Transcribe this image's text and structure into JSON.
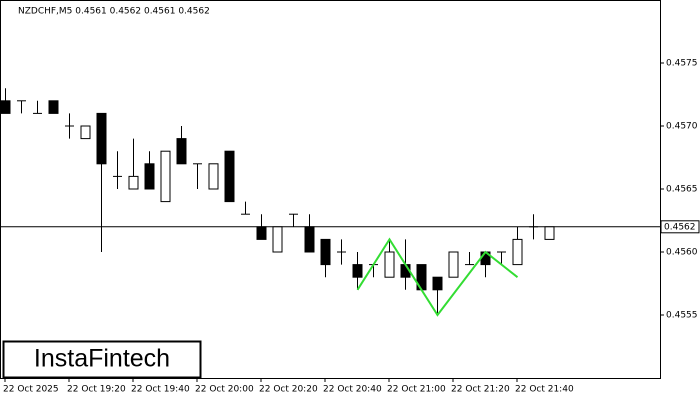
{
  "chart_data": {
    "type": "candlestick",
    "title": "NZDCHF,M5  0.4561 0.4562 0.4561 0.4562",
    "logo": "InstaFintech",
    "categories": [
      "22 Oct 2025",
      null,
      null,
      null,
      "22 Oct 19:20",
      null,
      null,
      null,
      "22 Oct 19:40",
      null,
      null,
      null,
      "22 Oct 20:00",
      null,
      null,
      null,
      "22 Oct 20:20",
      null,
      null,
      null,
      "22 Oct 20:40",
      null,
      null,
      null,
      "22 Oct 21:00",
      null,
      null,
      null,
      "22 Oct 21:20",
      null,
      null,
      null,
      "22 Oct 21:40",
      null,
      null
    ],
    "open": [
      0.4572,
      0.4572,
      0.4571,
      0.4572,
      0.457,
      0.4569,
      0.4571,
      0.4566,
      0.4565,
      0.4567,
      0.4564,
      0.4569,
      0.4567,
      0.4565,
      0.4568,
      0.4563,
      0.4562,
      0.456,
      0.4563,
      0.4562,
      0.4561,
      0.456,
      0.4559,
      0.4559,
      0.4558,
      0.4559,
      0.4559,
      0.4558,
      0.4558,
      0.4559,
      0.456,
      0.456,
      0.4559,
      0.4562,
      0.4561
    ],
    "high": [
      0.4573,
      0.4572,
      0.4572,
      0.4572,
      0.4571,
      0.457,
      0.4571,
      0.4568,
      0.4569,
      0.4568,
      0.4568,
      0.457,
      0.4567,
      0.4567,
      0.4568,
      0.4564,
      0.4563,
      0.4562,
      0.4563,
      0.4563,
      0.4561,
      0.4561,
      0.456,
      0.4559,
      0.4561,
      0.4561,
      0.4559,
      0.4558,
      0.456,
      0.456,
      0.456,
      0.456,
      0.4562,
      0.4563,
      0.4562
    ],
    "low": [
      0.4571,
      0.4571,
      0.4571,
      0.4571,
      0.4569,
      0.4569,
      0.456,
      0.4565,
      0.4565,
      0.4565,
      0.4564,
      0.4567,
      0.4565,
      0.4565,
      0.4564,
      0.4563,
      0.4561,
      0.456,
      0.4562,
      0.456,
      0.4558,
      0.4559,
      0.4557,
      0.4558,
      0.4558,
      0.4557,
      0.4557,
      0.4555,
      0.4558,
      0.4559,
      0.4558,
      0.4559,
      0.4559,
      0.4561,
      0.4561
    ],
    "close": [
      0.4571,
      0.4572,
      0.4571,
      0.4571,
      0.457,
      0.457,
      0.4567,
      0.4566,
      0.4566,
      0.4565,
      0.4568,
      0.4567,
      0.4567,
      0.4567,
      0.4564,
      0.4563,
      0.4561,
      0.4562,
      0.4563,
      0.456,
      0.4559,
      0.456,
      0.4558,
      0.4559,
      0.456,
      0.4558,
      0.4557,
      0.4557,
      0.456,
      0.4559,
      0.4559,
      0.456,
      0.4561,
      0.4562,
      0.4562
    ],
    "ylim": [
      0.455,
      0.458
    ],
    "yticks": [
      0.4555,
      {
        "value": 0.456,
        "label": "0.4560"
      },
      0.4565,
      {
        "value": 0.457,
        "label": "0.4570"
      },
      0.4575
    ],
    "price_line": 0.4562,
    "pattern": {
      "color": "#33dd33",
      "points": [
        {
          "index": 22,
          "value": 0.4557
        },
        {
          "index": 24,
          "value": 0.4561
        },
        {
          "index": 27,
          "value": 0.4555
        },
        {
          "index": 30,
          "value": 0.456
        },
        {
          "index": 32,
          "value": 0.4558
        }
      ]
    }
  }
}
